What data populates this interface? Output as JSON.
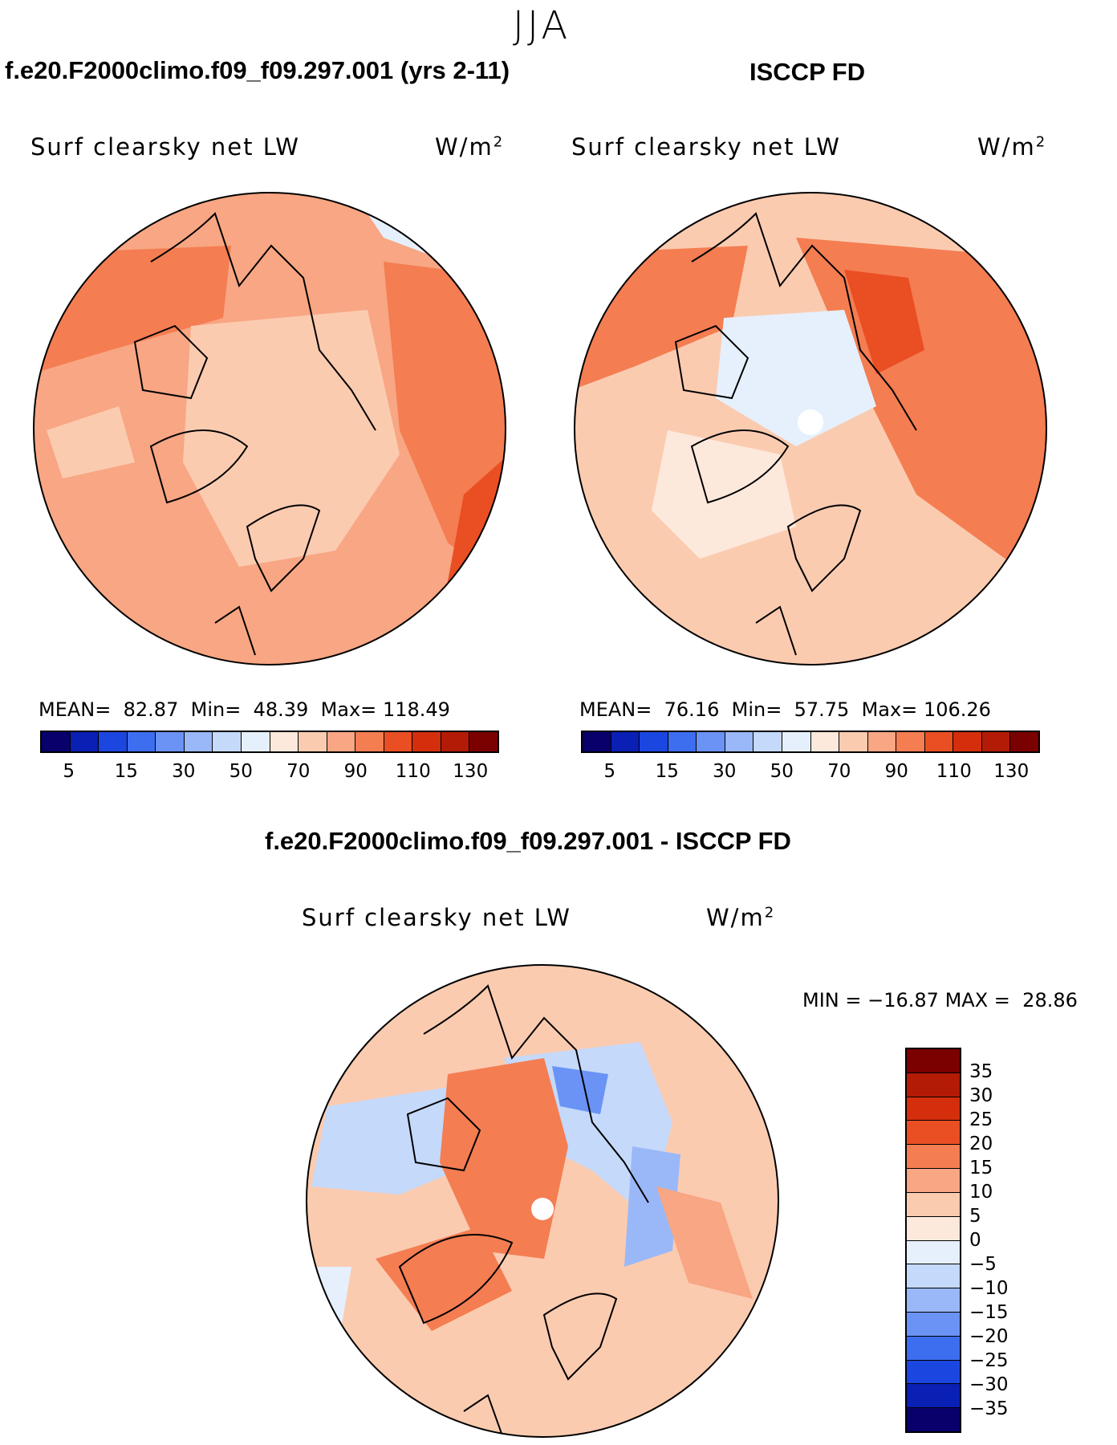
{
  "figure": {
    "season": "JJA",
    "variable": "Surf clearsky net LW",
    "units": "W/m²"
  },
  "panels": [
    {
      "title": "f.e20.F2000climo.f09_f09.297.001 (yrs 2-11)",
      "label": "Surf clearsky net LW",
      "units": "W/m",
      "units_sup": "2",
      "mean_label": "MEAN=",
      "mean": "82.87",
      "min_label": "Min=",
      "min": "48.39",
      "max_label": "Max=",
      "max": "118.49",
      "colorbar_ticks": [
        "5",
        "15",
        "30",
        "50",
        "70",
        "90",
        "110",
        "130"
      ]
    },
    {
      "title": "ISCCP FD",
      "label": "Surf clearsky net LW",
      "units": "W/m",
      "units_sup": "2",
      "mean_label": "MEAN=",
      "mean": "76.16",
      "min_label": "Min=",
      "min": "57.75",
      "max_label": "Max=",
      "max": "106.26",
      "colorbar_ticks": [
        "5",
        "15",
        "30",
        "50",
        "70",
        "90",
        "110",
        "130"
      ]
    }
  ],
  "difference": {
    "title": "f.e20.F2000climo.f09_f09.297.001 - ISCCP FD",
    "label": "Surf clearsky net LW",
    "units": "W/m",
    "units_sup": "2",
    "min_label": "MIN =",
    "min": "−16.87",
    "max_label": "MAX =",
    "max": "28.86",
    "colorbar_ticks": [
      "35",
      "30",
      "25",
      "20",
      "15",
      "10",
      "5",
      "0",
      "−5",
      "−10",
      "−15",
      "−20",
      "−25",
      "−30",
      "−35"
    ]
  },
  "colors": {
    "abs_scale": [
      "#08006b",
      "#0a1fb4",
      "#1c46e0",
      "#3d6ef0",
      "#6a93f5",
      "#9ab8f7",
      "#c5d9fa",
      "#e6f0fc",
      "#fde9dc",
      "#fbcbb0",
      "#f8a683",
      "#f47d52",
      "#ea4e23",
      "#d42e0c",
      "#b31b06",
      "#7b0000"
    ],
    "diff_scale": [
      "#7b0000",
      "#b31b06",
      "#d42e0c",
      "#ea4e23",
      "#f47d52",
      "#f8a683",
      "#fbcbb0",
      "#fde9dc",
      "#e6f0fc",
      "#c5d9fa",
      "#9ab8f7",
      "#6a93f5",
      "#3d6ef0",
      "#1c46e0",
      "#0a1fb4",
      "#08006b"
    ]
  },
  "map_fills": {
    "model_base": "#f8a683",
    "obs_base": "#fbcbb0",
    "diff_base": "#fbcbb0"
  }
}
